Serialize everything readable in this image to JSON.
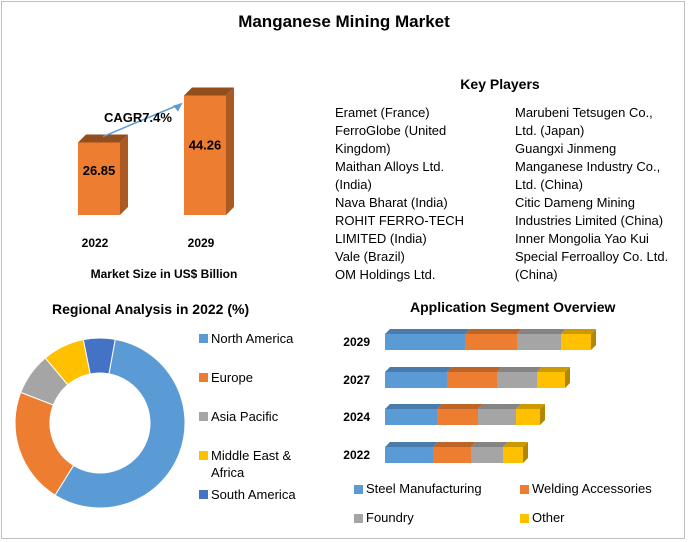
{
  "title": "Manganese Mining Market",
  "key_players": {
    "title": "Key Players",
    "left_lines": [
      "Eramet (France)",
      "FerroGlobe (United",
      "Kingdom)",
      "Maithan Alloys Ltd.",
      "(India)",
      "Nava Bharat (India)",
      "ROHIT FERRO-TECH",
      "LIMITED (India)",
      "Vale (Brazil)",
      "OM Holdings Ltd."
    ],
    "right_lines": [
      "Marubeni Tetsugen Co.,",
      "Ltd. (Japan)",
      "Guangxi Jinmeng",
      "Manganese Industry Co.,",
      "Ltd. (China)",
      "Citic Dameng Mining",
      "Industries Limited (China)",
      "Inner Mongolia Yao Kui",
      "Special Ferroalloy Co. Ltd.",
      "(China)"
    ]
  },
  "chart_data": [
    {
      "type": "bar",
      "categories": [
        "2022",
        "2029"
      ],
      "values": [
        26.85,
        44.26
      ],
      "xlabel": "Market Size in US$ Billion",
      "annotation": "CAGR7.4%",
      "colors": {
        "bar": "#ed7d31",
        "arrow": "#5b9bd5"
      }
    },
    {
      "type": "pie",
      "title": "Regional Analysis in 2022 (%)",
      "labels": [
        "North America",
        "Europe",
        "Asia Pacific",
        "Middle East & Africa",
        "South America"
      ],
      "values": [
        56,
        22,
        8,
        8,
        6
      ],
      "colors": [
        "#5b9bd5",
        "#ed7d31",
        "#a5a5a5",
        "#ffc000",
        "#4472c4"
      ]
    },
    {
      "type": "bar",
      "orientation": "horizontal",
      "stacked": true,
      "title": "Application Segment Overview",
      "categories": [
        "2029",
        "2027",
        "2024",
        "2022"
      ],
      "series": [
        {
          "name": "Steel Manufacturing",
          "color": "#5b9bd5",
          "values": [
            80,
            62,
            52,
            48
          ]
        },
        {
          "name": "Welding Accessories",
          "color": "#ed7d31",
          "values": [
            52,
            50,
            41,
            38
          ]
        },
        {
          "name": "Foundry",
          "color": "#a5a5a5",
          "values": [
            44,
            40,
            38,
            32
          ]
        },
        {
          "name": "Other",
          "color": "#ffc000",
          "values": [
            30,
            28,
            24,
            20
          ]
        }
      ]
    }
  ]
}
